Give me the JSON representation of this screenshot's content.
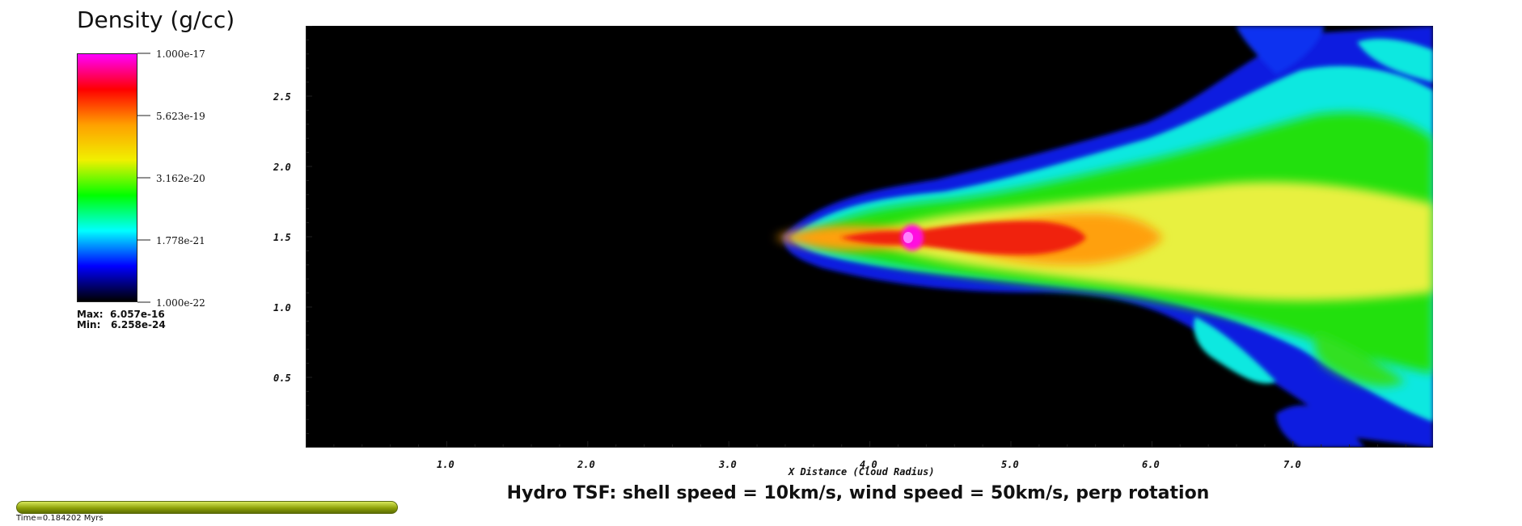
{
  "legend": {
    "title": "Density (g/cc)",
    "ticks": [
      "1.000e-17",
      "5.623e-19",
      "3.162e-20",
      "1.778e-21",
      "1.000e-22"
    ],
    "max_label": "Max:",
    "max_value": "6.057e-16",
    "min_label": "Min:",
    "min_value": "6.258e-24",
    "colormap": [
      "#ff00ff",
      "#ff0000",
      "#ffa000",
      "#f0f000",
      "#00ff00",
      "#00ffff",
      "#0000ff",
      "#000000"
    ]
  },
  "plot": {
    "x_axis_label": "X Distance (Cloud Radius)",
    "x_ticks": [
      "1.0",
      "2.0",
      "3.0",
      "4.0",
      "5.0",
      "6.0",
      "7.0"
    ],
    "y_ticks": [
      "0.5",
      "1.0",
      "1.5",
      "2.0",
      "2.5"
    ],
    "background": "#000000"
  },
  "title": "Hydro TSF: shell speed = 10km/s, wind speed = 50km/s, perp rotation",
  "time": {
    "label": "Time=0.184202 Myrs",
    "bar_color": "#9aae10"
  }
}
